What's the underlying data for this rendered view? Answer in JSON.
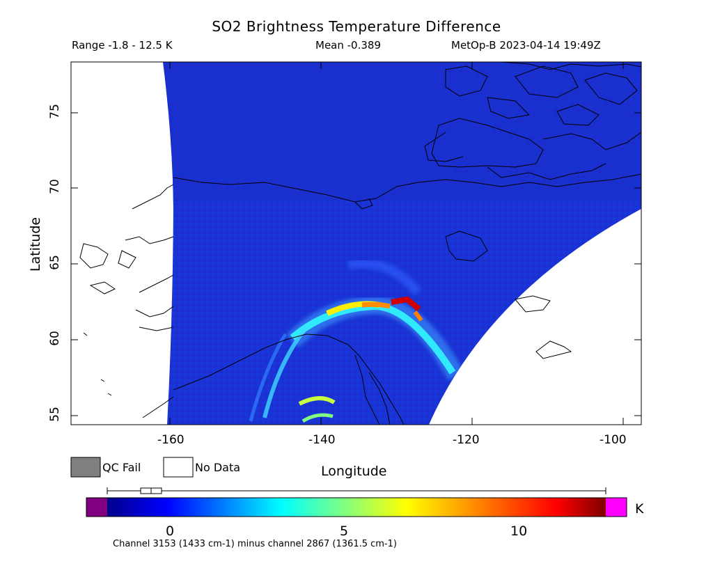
{
  "header": {
    "title": "SO2 Brightness Temperature Difference",
    "range_text": "Range -1.8 - 12.5 K",
    "mean_text": "Mean -0.389",
    "sat_text": "MetOp-B 2023-04-14 19:49Z"
  },
  "axes": {
    "xlabel": "Longitude",
    "ylabel": "Latitude",
    "x_ticks": [
      "-160",
      "-140",
      "-120",
      "-100"
    ],
    "y_ticks": [
      "75",
      "70",
      "65",
      "60",
      "55"
    ],
    "x_range": [
      -175,
      -97.5
    ],
    "y_range": [
      54.4,
      78.3
    ]
  },
  "legend": {
    "qc_fail_label": "QC Fail",
    "no_data_label": "No Data",
    "qc_fail_color": "#808080",
    "no_data_color": "#ffffff"
  },
  "colorbar": {
    "ticks": [
      "0",
      "5",
      "10"
    ],
    "tick_values": [
      0,
      5,
      10
    ],
    "range": [
      -1.8,
      12.5
    ],
    "unit": "K",
    "under_color": "#800080",
    "over_color": "#ff00ff",
    "boxplot": {
      "min": -1.8,
      "q1": -0.8,
      "median": -0.5,
      "q3": -0.1,
      "max": 12.5
    }
  },
  "footnote": "Channel 3153 (1433 cm-1) minus channel 2867 (1361.5 cm-1)",
  "colors": {
    "background_field": "#1530d8",
    "plume_peak": "#d00000"
  }
}
